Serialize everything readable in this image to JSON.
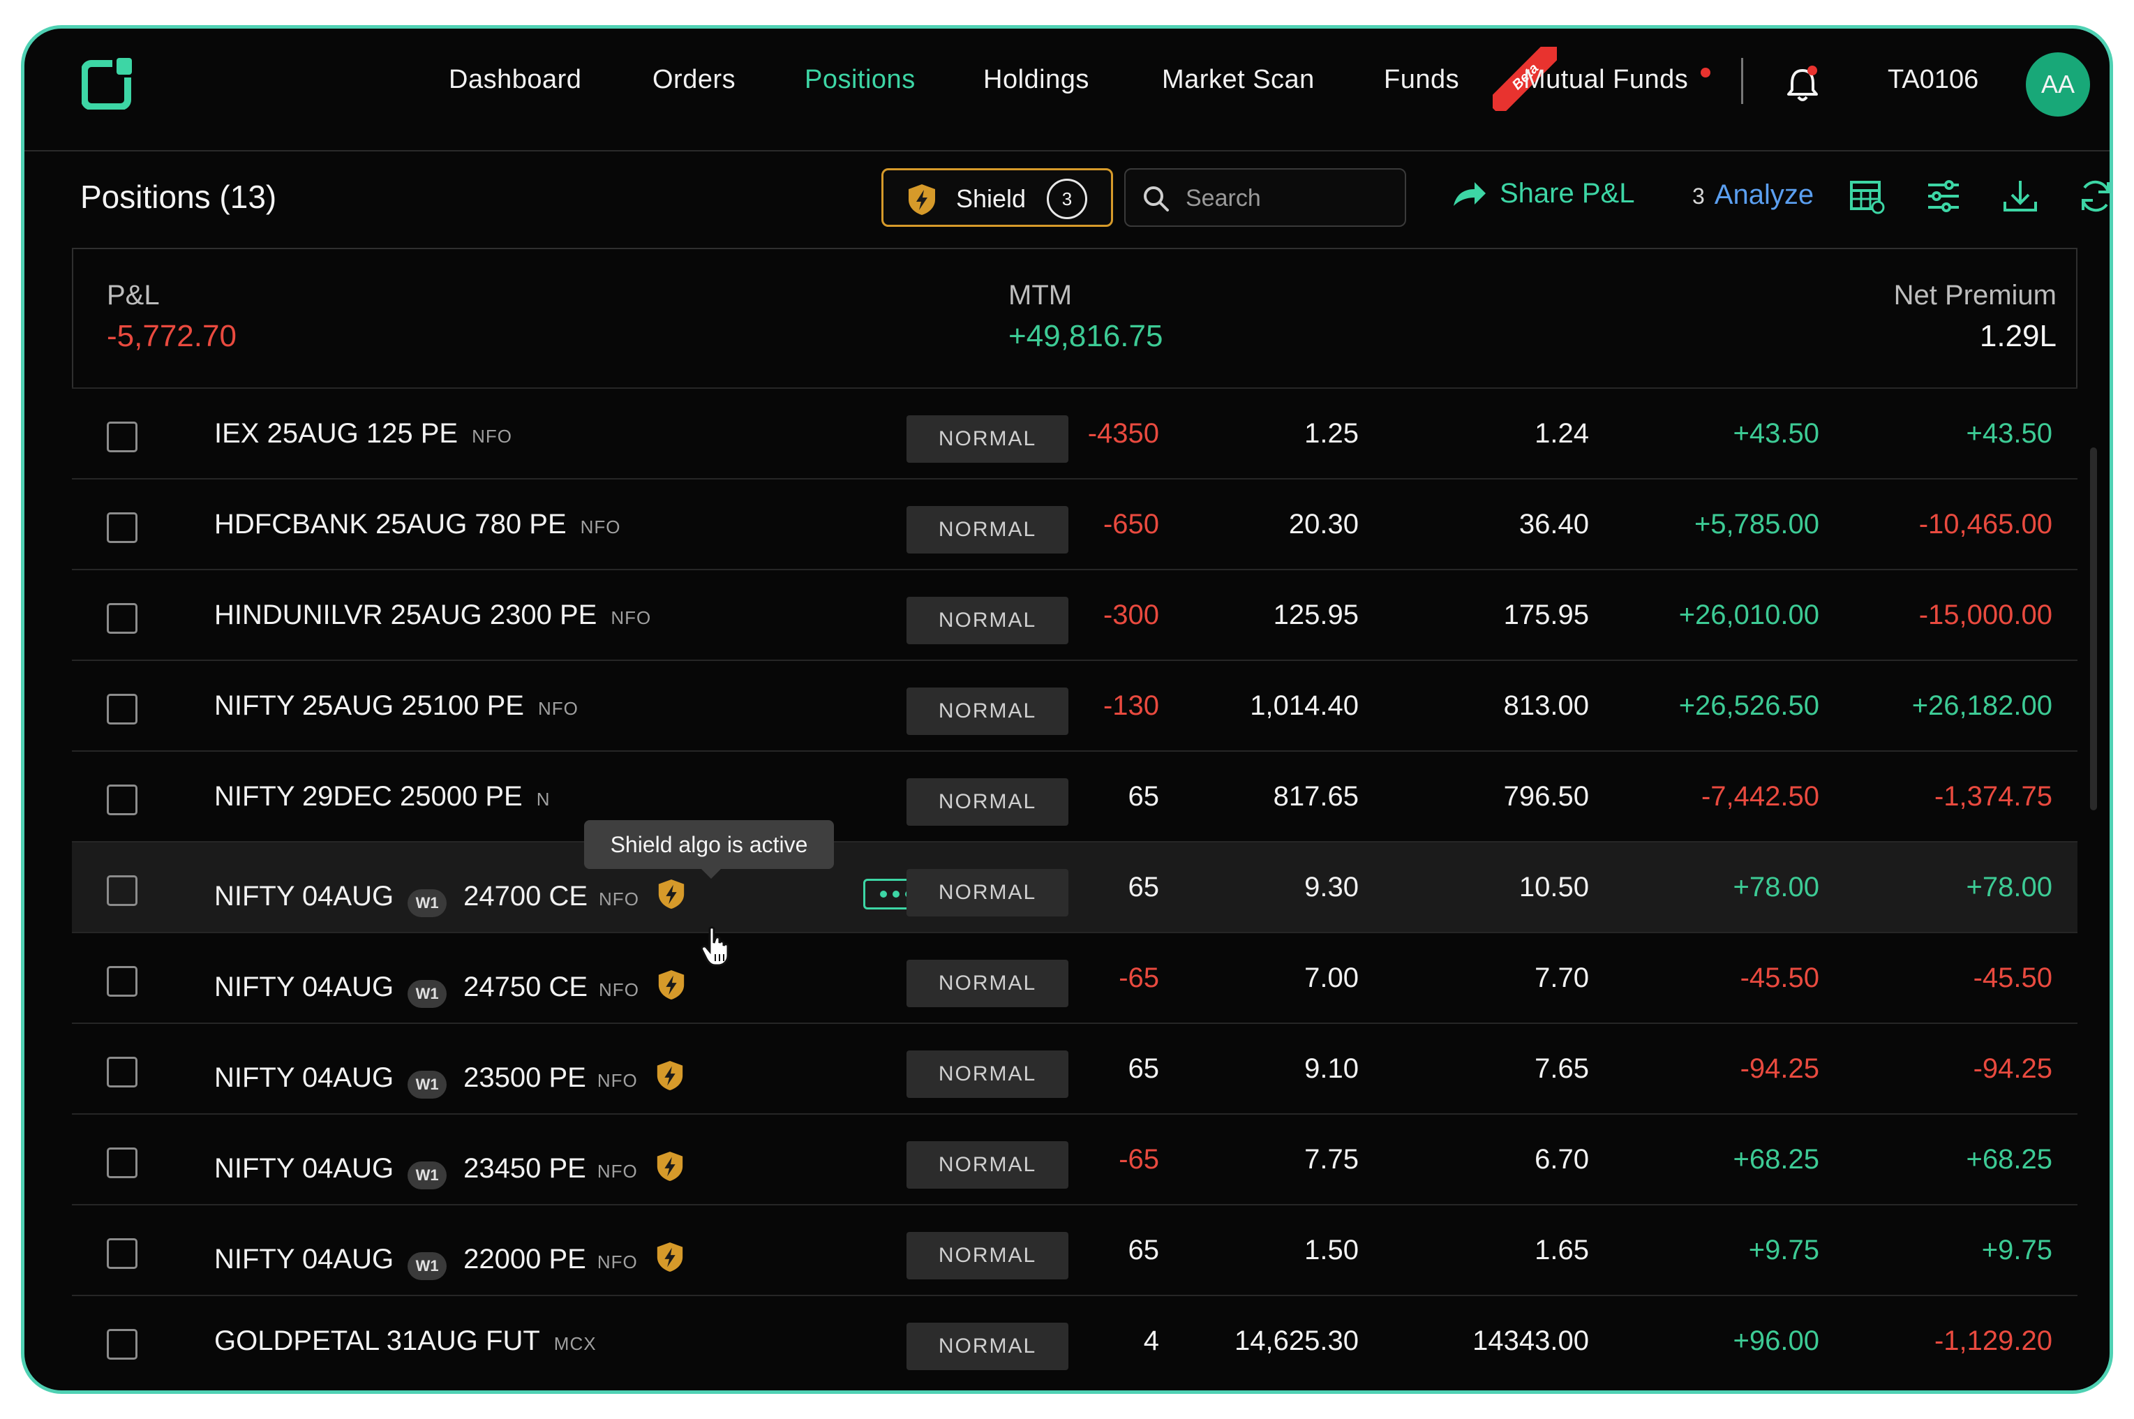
{
  "nav": {
    "items": [
      {
        "label": "Dashboard",
        "active": false
      },
      {
        "label": "Orders",
        "active": false
      },
      {
        "label": "Positions",
        "active": true
      },
      {
        "label": "Holdings",
        "active": false
      },
      {
        "label": "Market Scan",
        "active": false
      },
      {
        "label": "Funds",
        "active": false
      },
      {
        "label": "Mutual Funds",
        "active": false
      }
    ],
    "beta_label": "Beta",
    "account_id": "TA0106",
    "avatar_initials": "AA",
    "icons": {
      "logo": "brand-logo",
      "notifications": "bell-icon"
    }
  },
  "toolbar": {
    "title": "Positions (13)",
    "shield_label": "Shield",
    "shield_count": "3",
    "search_placeholder": "Search",
    "share_label": "Share P&L",
    "analyze_prefix": "3",
    "analyze_label": "Analyze"
  },
  "summary": {
    "pnl_label": "P&L",
    "pnl_value": "-5,772.70",
    "mtm_label": "MTM",
    "mtm_value": "+49,816.75",
    "net_premium_label": "Net Premium",
    "net_premium_value": "1.29L"
  },
  "tooltip": "Shield algo is active",
  "rows": [
    {
      "base": "IEX 25AUG 125 PE",
      "weekly": "",
      "strike": "",
      "exch": "NFO",
      "shield": false,
      "product": "NORMAL",
      "qty": "-4350",
      "avg": "1.25",
      "ltp": "1.24",
      "pnl": "+43.50",
      "chg": "+43.50"
    },
    {
      "base": "HDFCBANK 25AUG 780 PE",
      "weekly": "",
      "strike": "",
      "exch": "NFO",
      "shield": false,
      "product": "NORMAL",
      "qty": "-650",
      "avg": "20.30",
      "ltp": "36.40",
      "pnl": "+5,785.00",
      "chg": "-10,465.00"
    },
    {
      "base": "HINDUNILVR 25AUG 2300 PE",
      "weekly": "",
      "strike": "",
      "exch": "NFO",
      "shield": false,
      "product": "NORMAL",
      "qty": "-300",
      "avg": "125.95",
      "ltp": "175.95",
      "pnl": "+26,010.00",
      "chg": "-15,000.00"
    },
    {
      "base": "NIFTY 25AUG 25100 PE",
      "weekly": "",
      "strike": "",
      "exch": "NFO",
      "shield": false,
      "product": "NORMAL",
      "qty": "-130",
      "avg": "1,014.40",
      "ltp": "813.00",
      "pnl": "+26,526.50",
      "chg": "+26,182.00"
    },
    {
      "base": "NIFTY 29DEC 25000 PE",
      "weekly": "",
      "strike": "",
      "exch": "N",
      "shield": false,
      "product": "NORMAL",
      "qty": "65",
      "avg": "817.65",
      "ltp": "796.50",
      "pnl": "-7,442.50",
      "chg": "-1,374.75"
    },
    {
      "base": "NIFTY 04AUG",
      "weekly": "W1",
      "strike": "24700 CE",
      "exch": "NFO",
      "shield": true,
      "product": "NORMAL",
      "qty": "65",
      "avg": "9.30",
      "ltp": "10.50",
      "pnl": "+78.00",
      "chg": "+78.00"
    },
    {
      "base": "NIFTY 04AUG",
      "weekly": "W1",
      "strike": "24750 CE",
      "exch": "NFO",
      "shield": true,
      "product": "NORMAL",
      "qty": "-65",
      "avg": "7.00",
      "ltp": "7.70",
      "pnl": "-45.50",
      "chg": "-45.50"
    },
    {
      "base": "NIFTY 04AUG",
      "weekly": "W1",
      "strike": "23500 PE",
      "exch": "NFO",
      "shield": true,
      "product": "NORMAL",
      "qty": "65",
      "avg": "9.10",
      "ltp": "7.65",
      "pnl": "-94.25",
      "chg": "-94.25"
    },
    {
      "base": "NIFTY 04AUG",
      "weekly": "W1",
      "strike": "23450 PE",
      "exch": "NFO",
      "shield": true,
      "product": "NORMAL",
      "qty": "-65",
      "avg": "7.75",
      "ltp": "6.70",
      "pnl": "+68.25",
      "chg": "+68.25"
    },
    {
      "base": "NIFTY 04AUG",
      "weekly": "W1",
      "strike": "22000 PE",
      "exch": "NFO",
      "shield": true,
      "product": "NORMAL",
      "qty": "65",
      "avg": "1.50",
      "ltp": "1.65",
      "pnl": "+9.75",
      "chg": "+9.75"
    },
    {
      "base": "GOLDPETAL 31AUG FUT",
      "weekly": "",
      "strike": "",
      "exch": "MCX",
      "shield": false,
      "product": "NORMAL",
      "qty": "4",
      "avg": "14,625.30",
      "ltp": "14343.00",
      "pnl": "+96.00",
      "chg": "-1,129.20"
    }
  ],
  "colors": {
    "accent": "#3dd6a5",
    "negative": "#e94a3f",
    "positive": "#3dcb95",
    "shield": "#d69a2a",
    "analyze": "#5b9ff0"
  }
}
